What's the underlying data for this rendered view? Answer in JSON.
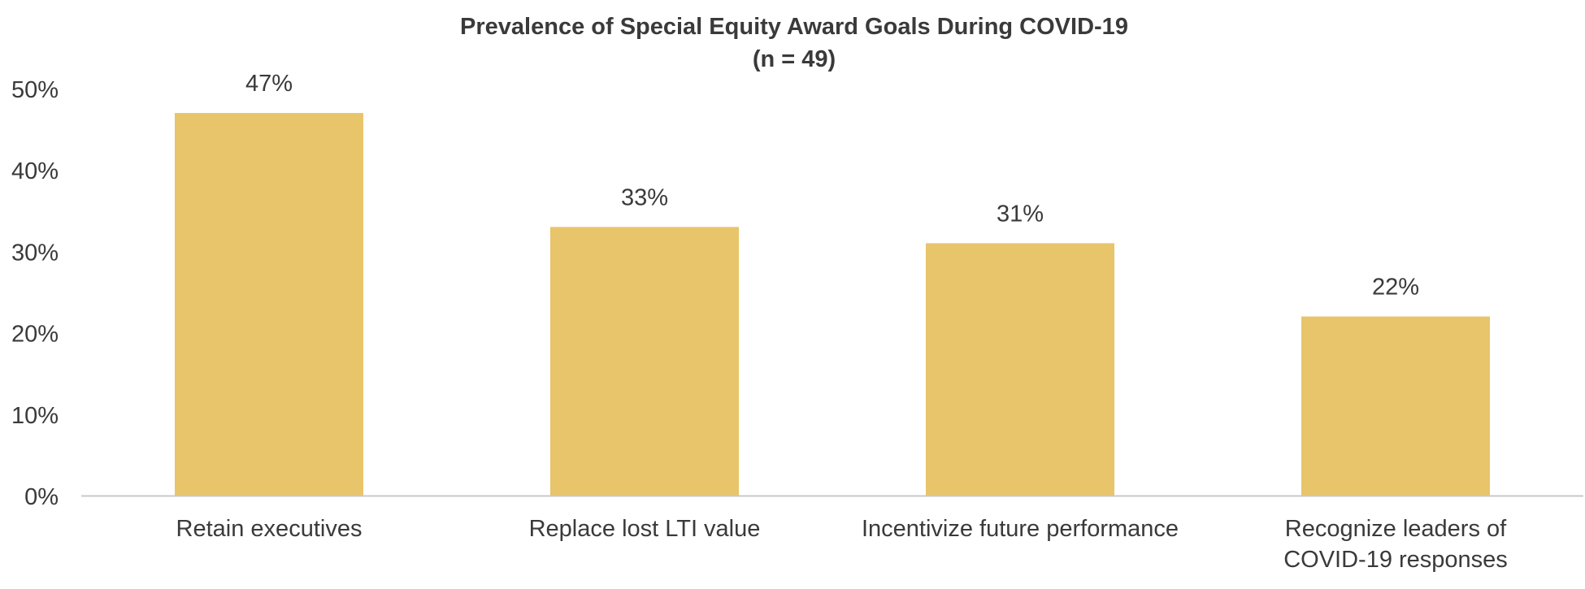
{
  "chart_data": {
    "type": "bar",
    "title": "Prevalence of Special Equity Award Goals During COVID-19",
    "subtitle": "(n = 49)",
    "categories": [
      [
        "Retain executives"
      ],
      [
        "Replace lost LTI value"
      ],
      [
        "Incentivize future performance"
      ],
      [
        "Recognize leaders of",
        "COVID-19 responses"
      ]
    ],
    "values": [
      47,
      33,
      31,
      22
    ],
    "value_labels": [
      "47%",
      "33%",
      "31%",
      "22%"
    ],
    "yticks": [
      "0%",
      "10%",
      "20%",
      "30%",
      "40%",
      "50%"
    ],
    "ylim": [
      0,
      50
    ],
    "grid": false,
    "legend": "none",
    "xlabel": "",
    "ylabel": "",
    "colors": {
      "bar": "#E8C46A",
      "text": "#3a3a3a",
      "axis": "#c8c8c8"
    }
  }
}
